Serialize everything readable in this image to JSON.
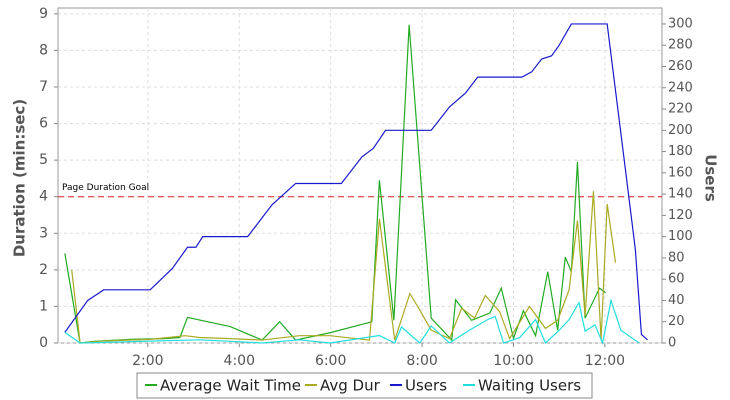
{
  "chart_data": {
    "type": "line",
    "y_label": "Duration (min:sec)",
    "y2_label": "Users",
    "xlim": [
      2,
      795
    ],
    "xticks": [
      {
        "value": 120,
        "label": "2:00"
      },
      {
        "value": 240,
        "label": "4:00"
      },
      {
        "value": 360,
        "label": "6:00"
      },
      {
        "value": 480,
        "label": "8:00"
      },
      {
        "value": 600,
        "label": "10:00"
      },
      {
        "value": 720,
        "label": "12:00"
      }
    ],
    "ylim": [
      0,
      9.16
    ],
    "yticks": [
      0,
      1,
      2,
      3,
      4,
      5,
      6,
      7,
      8,
      9
    ],
    "y2lim": [
      0,
      315
    ],
    "y2ticks": [
      0,
      20,
      40,
      60,
      80,
      100,
      120,
      140,
      160,
      180,
      200,
      220,
      240,
      260,
      280,
      300
    ],
    "grid": true,
    "goal": {
      "value": 4,
      "label": "Page Duration Goal",
      "color": "#dd2222"
    },
    "series": [
      {
        "name": "Average Wait Time",
        "color": "#22aa22",
        "x": [
          11,
          31,
          51,
          96,
          142,
          162,
          172,
          228,
          270,
          293,
          314,
          359,
          414,
          424,
          443,
          463,
          492,
          519,
          524,
          545,
          569,
          584,
          600,
          613,
          629,
          645,
          658,
          668,
          676,
          684,
          694,
          713,
          721
        ],
        "values": [
          2.45,
          0,
          0.05,
          0.1,
          0.12,
          0.15,
          0.7,
          0.45,
          0.08,
          0.58,
          0.08,
          0.28,
          0.58,
          4.45,
          0.62,
          8.7,
          0.68,
          0.08,
          1.18,
          0.62,
          0.82,
          1.5,
          0.13,
          0.88,
          0.2,
          1.95,
          0.35,
          2.35,
          1.95,
          4.95,
          0.68,
          1.5,
          1.37
        ]
      },
      {
        "name": "Avg Dur",
        "color": "#aaaa22",
        "x": [
          20,
          31,
          57,
          123,
          169,
          188,
          228,
          270,
          319,
          359,
          411,
          424,
          444,
          464,
          477,
          492,
          516,
          532,
          549,
          563,
          582,
          595,
          621,
          642,
          658,
          673,
          684,
          694,
          705,
          715,
          723,
          734
        ],
        "values": [
          2.0,
          0,
          0.05,
          0.1,
          0.2,
          0.15,
          0.12,
          0.08,
          0.2,
          0.2,
          0.08,
          3.4,
          0.08,
          1.35,
          0.9,
          0.35,
          0.12,
          0.95,
          0.68,
          1.3,
          0.85,
          0.12,
          1.0,
          0.4,
          0.62,
          1.45,
          3.35,
          0.75,
          4.15,
          0.08,
          3.8,
          2.2
        ]
      },
      {
        "name": "Users",
        "color": "#1a1acc",
        "axis": "y2",
        "x": [
          11,
          41,
          62,
          73,
          123,
          152,
          172,
          183,
          192,
          251,
          283,
          314,
          374,
          401,
          416,
          432,
          492,
          516,
          537,
          553,
          611,
          624,
          637,
          650,
          660,
          676,
          723,
          747,
          760,
          768,
          776
        ],
        "values": [
          10,
          40,
          50,
          50,
          50,
          70,
          90,
          90,
          100,
          100,
          130,
          150,
          150,
          175,
          183,
          200,
          200,
          222,
          235,
          250,
          250,
          255,
          267,
          270,
          280,
          300,
          300,
          163,
          88,
          8,
          3
        ]
      },
      {
        "name": "Waiting Users",
        "color": "#22dddd",
        "axis": "y2",
        "x": [
          11,
          31,
          188,
          270,
          319,
          359,
          424,
          444,
          453,
          477,
          492,
          516,
          542,
          566,
          576,
          587,
          608,
          629,
          642,
          660,
          673,
          686,
          694,
          707,
          717,
          728,
          741,
          765
        ],
        "values": [
          10,
          0,
          3,
          0,
          3,
          0,
          7,
          0,
          15,
          0,
          16,
          0,
          12,
          22,
          25,
          0,
          5,
          22,
          0,
          12,
          22,
          38,
          11,
          17,
          0,
          40,
          12,
          0
        ]
      }
    ]
  }
}
